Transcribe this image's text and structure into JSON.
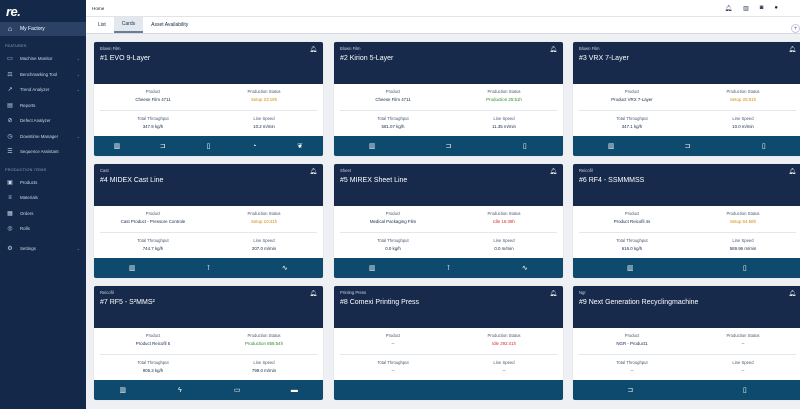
{
  "app": {
    "logo": "re."
  },
  "sidebar": {
    "active": {
      "label": "My Factory",
      "icon": "home-icon"
    },
    "features_title": "FEATURES",
    "features": [
      {
        "label": "Machine Monitor",
        "icon": "monitor-icon",
        "chevron": true
      },
      {
        "label": "Benchmarking Tool",
        "icon": "benchmark-icon",
        "chevron": true
      },
      {
        "label": "Trend Analyzer",
        "icon": "trend-icon",
        "chevron": true
      },
      {
        "label": "Reports",
        "icon": "reports-icon",
        "chevron": false
      },
      {
        "label": "Defect Analyzer",
        "icon": "defect-icon",
        "chevron": false
      },
      {
        "label": "Downtime Manager",
        "icon": "downtime-icon",
        "chevron": true
      },
      {
        "label": "Sequence Assistant",
        "icon": "sequence-icon",
        "chevron": false
      }
    ],
    "production_title": "PRODUCTION ITEMS",
    "production": [
      {
        "label": "Products",
        "icon": "products-icon",
        "chevron": false
      },
      {
        "label": "Materials",
        "icon": "materials-icon",
        "chevron": false
      },
      {
        "label": "Orders",
        "icon": "orders-icon",
        "chevron": false
      },
      {
        "label": "Rolls",
        "icon": "rolls-icon",
        "chevron": false
      }
    ],
    "settings": {
      "label": "Settings",
      "icon": "settings-icon",
      "chevron": true
    }
  },
  "header": {
    "breadcrumb": "Home",
    "icons": [
      "bell-icon",
      "factory-icon",
      "camera-icon",
      "user-icon"
    ]
  },
  "tabs": [
    {
      "label": "List",
      "active": false
    },
    {
      "label": "Cards",
      "active": true
    },
    {
      "label": "Asset Availability",
      "active": false
    }
  ],
  "labels": {
    "product": "Product",
    "status": "Production Status",
    "throughput": "Total Throughput",
    "speed": "Line Speed"
  },
  "cards": [
    {
      "category": "Blown Film",
      "title": "#1 EVO 9-Layer",
      "product": "Cheese Film 4711",
      "status": "Setup 23:19h",
      "status_color": "orange",
      "throughput": "347.9 kg/h",
      "speed": "10.2 m/min",
      "icons": [
        "factory-icon",
        "extruder-icon",
        "clipboard-icon",
        "gauge-icon",
        "leaf-icon"
      ]
    },
    {
      "category": "Blown Film",
      "title": "#2 Kirion 5-Layer",
      "product": "Cheese Film 4711",
      "status": "Production 25:51h",
      "status_color": "green",
      "throughput": "581.07 kg/h",
      "speed": "11.35 m/min",
      "icons": [
        "factory-icon",
        "extruder-icon",
        "clipboard-icon"
      ]
    },
    {
      "category": "Blown Film",
      "title": "#3 VRX 7-Layer",
      "product": "Product VRX 7-Layer",
      "status": "Setup 25:51h",
      "status_color": "orange",
      "throughput": "347.1 kg/h",
      "speed": "10.0 m/min",
      "icons": [
        "factory-icon",
        "extruder-icon",
        "clipboard-icon"
      ]
    },
    {
      "category": "Cast",
      "title": "#4 MIDEX Cast Line",
      "product": "Cast Product - Pressure Controle",
      "status": "Setup 10:41h",
      "status_color": "orange",
      "throughput": "744.7 kg/h",
      "speed": "207.0 m/min",
      "icons": [
        "factory-icon",
        "thermometer-icon",
        "chart-icon"
      ]
    },
    {
      "category": "Sheet",
      "title": "#5 MIREX Sheet Line",
      "product": "Medical Packaging Film",
      "status": "Idle 16:38h",
      "status_color": "red",
      "throughput": "0.0 kg/h",
      "speed": "0.0 m/min",
      "icons": [
        "factory-icon",
        "thermometer-icon",
        "chart-icon"
      ]
    },
    {
      "category": "Reicofil",
      "title": "#6 RF4 - SSMMMSS",
      "product": "Product Reicofil 4s",
      "status": "Setup 64:58h",
      "status_color": "orange",
      "throughput": "616.0 kg/h",
      "speed": "589.96 m/min",
      "icons": [
        "factory-icon",
        "clipboard-icon"
      ]
    },
    {
      "category": "Reicofil",
      "title": "#7 RF5 - S²MMS²",
      "product": "Product Reicofil 5",
      "status": "Production 858:54h",
      "status_color": "green",
      "throughput": "905.3 kg/h",
      "speed": "799.0 m/min",
      "icons": [
        "factory-icon",
        "bolt-icon",
        "screen-icon",
        "toolbox-icon"
      ]
    },
    {
      "category": "Printing Press",
      "title": "#8 Comexi Printing Press",
      "product": "--",
      "status": "Idle 292:41h",
      "status_color": "red",
      "throughput": "--",
      "speed": "--",
      "icons": []
    },
    {
      "category": "Ngr",
      "title": "#9 Next Generation Recyclingmachine",
      "product": "NGR - Product1",
      "status": "--",
      "status_color": "none",
      "throughput": "--",
      "speed": "--",
      "icons": [
        "extruder-icon",
        "clipboard-icon"
      ]
    }
  ],
  "colors": {
    "sidebar": "#14294a",
    "card_header": "#172a4c",
    "card_footer": "#0e4a6e",
    "orange": "#d18a0e",
    "green": "#2e8a2e",
    "red": "#d22e2e"
  }
}
